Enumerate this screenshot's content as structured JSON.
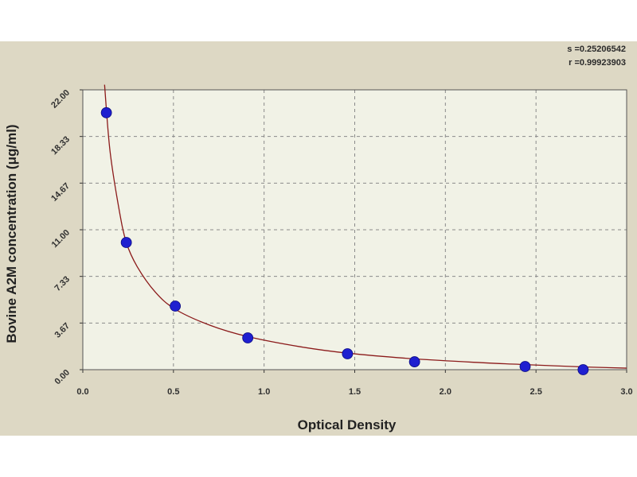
{
  "stats": {
    "s_label": "s =0.25206542",
    "r_label": "r =0.99923903"
  },
  "chart_data": {
    "type": "scatter",
    "title": "",
    "xlabel": "Optical Density",
    "ylabel": "Bovine A2M concentration (μg/ml)",
    "xlim": [
      0,
      3.0
    ],
    "ylim": [
      0,
      22.0
    ],
    "xticks": [
      "0.0",
      "0.5",
      "1.0",
      "1.5",
      "2.0",
      "2.5",
      "3.0"
    ],
    "yticks": [
      "0.00",
      "3.67",
      "7.33",
      "11.00",
      "14.67",
      "18.33",
      "22.00"
    ],
    "grid": true,
    "series": [
      {
        "points": [
          {
            "x": 0.13,
            "y": 20.2
          },
          {
            "x": 0.24,
            "y": 10.0
          },
          {
            "x": 0.51,
            "y": 5.0
          },
          {
            "x": 0.91,
            "y": 2.5
          },
          {
            "x": 1.46,
            "y": 1.25
          },
          {
            "x": 1.83,
            "y": 0.62
          },
          {
            "x": 2.44,
            "y": 0.25
          },
          {
            "x": 2.76,
            "y": 0.0
          }
        ],
        "color": "#1f1fd0"
      }
    ],
    "fit_curve": {
      "color": "#8b1a1a",
      "points": [
        {
          "x": 0.12,
          "y": 22.4
        },
        {
          "x": 0.15,
          "y": 17.2
        },
        {
          "x": 0.2,
          "y": 12.6
        },
        {
          "x": 0.24,
          "y": 10.0
        },
        {
          "x": 0.3,
          "y": 8.1
        },
        {
          "x": 0.4,
          "y": 6.1
        },
        {
          "x": 0.51,
          "y": 4.75
        },
        {
          "x": 0.7,
          "y": 3.5
        },
        {
          "x": 0.91,
          "y": 2.6
        },
        {
          "x": 1.2,
          "y": 1.8
        },
        {
          "x": 1.46,
          "y": 1.3
        },
        {
          "x": 1.83,
          "y": 0.85
        },
        {
          "x": 2.2,
          "y": 0.55
        },
        {
          "x": 2.44,
          "y": 0.4
        },
        {
          "x": 2.76,
          "y": 0.22
        },
        {
          "x": 3.0,
          "y": 0.12
        }
      ]
    },
    "colors": {
      "plot_bg": "#f1f2e6",
      "frame_bg": "#ddd8c4",
      "grid": "#8a8a8a",
      "marker": "#1f1fd0",
      "curve": "#8b1a1a"
    }
  }
}
